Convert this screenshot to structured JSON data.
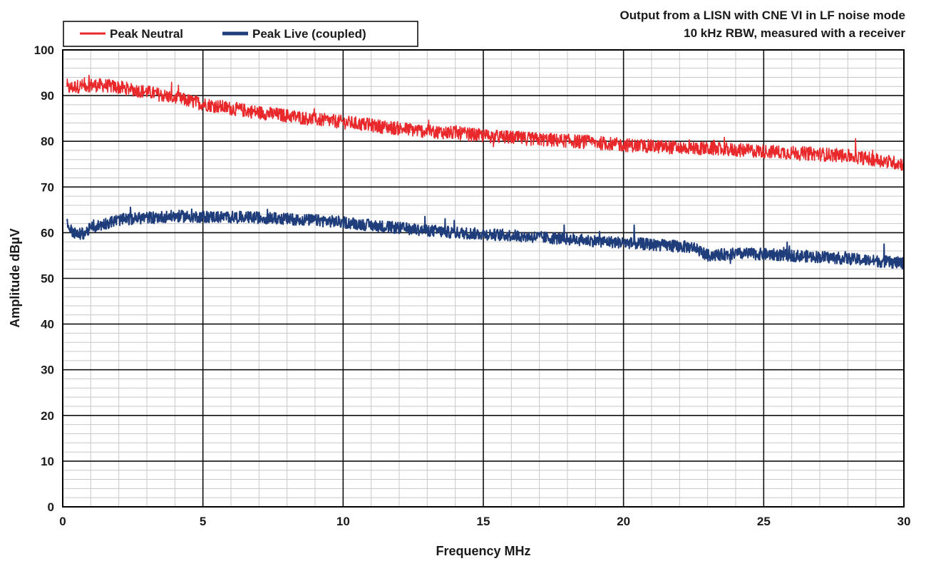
{
  "chart_data": {
    "type": "line",
    "title": "Output from a LISN with CNE VI in LF noise mode",
    "subtitle": "10 kHz RBW, measured with a receiver",
    "xlabel": "Frequency MHz",
    "ylabel": "Amplitude dBµV",
    "xlim": [
      0,
      30
    ],
    "ylim": [
      0,
      100
    ],
    "x_ticks": [
      0,
      5,
      10,
      15,
      20,
      25,
      30
    ],
    "y_ticks": [
      0,
      10,
      20,
      30,
      40,
      50,
      60,
      70,
      80,
      90,
      100
    ],
    "x_minor_step": 1,
    "y_minor_step": 2,
    "grid": true,
    "legend_position": "top-left",
    "series": [
      {
        "name": "Peak Neutral",
        "color": "#e8282b",
        "noise_amplitude": 1.5,
        "x": [
          0.15,
          0.5,
          1,
          1.5,
          2,
          3,
          4,
          5,
          6,
          7,
          8,
          9,
          10,
          11,
          12,
          13,
          14,
          15,
          16,
          17,
          18,
          19,
          20,
          21,
          22,
          23,
          24,
          25,
          26,
          27,
          28,
          29,
          30
        ],
        "y": [
          91.5,
          92,
          92.3,
          92.2,
          91.8,
          90.8,
          89.5,
          88.2,
          87.2,
          86.3,
          85.6,
          84.8,
          84.2,
          83.5,
          82.8,
          82.2,
          81.8,
          81.2,
          80.8,
          80.4,
          80.1,
          79.7,
          79.2,
          78.9,
          78.6,
          78.4,
          78.1,
          77.8,
          77.5,
          77.2,
          76.8,
          76,
          75
        ]
      },
      {
        "name": "Peak Live (coupled)",
        "color": "#1f3d7a",
        "noise_amplitude": 1.3,
        "x": [
          0.15,
          0.3,
          0.5,
          0.8,
          1,
          1.5,
          2,
          3,
          4,
          5,
          6,
          7,
          8,
          9,
          10,
          11,
          12,
          13,
          14,
          15,
          16,
          17,
          18,
          19,
          20,
          21,
          22,
          22.5,
          23,
          23.5,
          24,
          25,
          26,
          27,
          28,
          29,
          30
        ],
        "y": [
          62,
          60.5,
          59.5,
          60,
          61,
          62,
          62.8,
          63.3,
          63.6,
          63.5,
          63.4,
          63.3,
          63,
          62.7,
          62.3,
          61.6,
          61,
          60.5,
          60,
          59.7,
          59.4,
          59,
          58.6,
          58.2,
          57.8,
          57.4,
          57,
          56.8,
          55,
          55.2,
          55.4,
          55.3,
          55,
          54.7,
          54.3,
          53.8,
          53.3
        ]
      }
    ]
  }
}
